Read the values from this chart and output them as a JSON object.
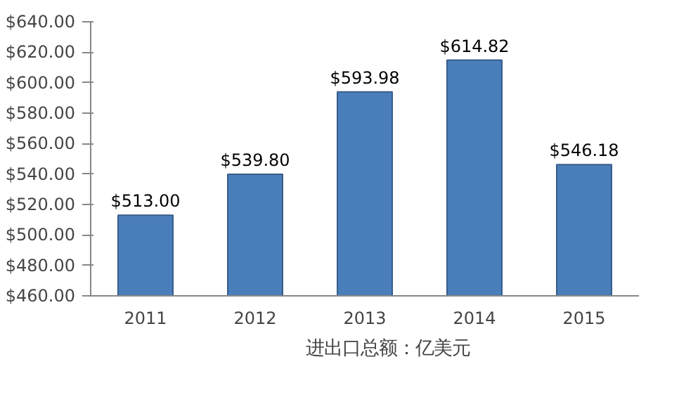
{
  "chart_data": {
    "type": "bar",
    "categories": [
      "2011",
      "2012",
      "2013",
      "2014",
      "2015"
    ],
    "series": [
      {
        "name": "进出口总额：亿美元",
        "color": "#4a7ebb",
        "values": [
          513.0,
          539.8,
          593.98,
          614.82,
          546.18
        ],
        "value_labels": [
          "$513.00",
          "$539.80",
          "$593.98",
          "$614.82",
          "$546.18"
        ]
      }
    ],
    "ylim": [
      460,
      640
    ],
    "yticks": [
      {
        "value": 460,
        "label": "$460.00"
      },
      {
        "value": 480,
        "label": "$480.00"
      },
      {
        "value": 500,
        "label": "$500.00"
      },
      {
        "value": 520,
        "label": "$520.00"
      },
      {
        "value": 540,
        "label": "$540.00"
      },
      {
        "value": 560,
        "label": "$560.00"
      },
      {
        "value": 580,
        "label": "$580.00"
      },
      {
        "value": 600,
        "label": "$600.00"
      },
      {
        "value": 620,
        "label": "$620.00"
      },
      {
        "value": 640,
        "label": "$640.00"
      }
    ],
    "grid": false,
    "legend": "bottom"
  }
}
